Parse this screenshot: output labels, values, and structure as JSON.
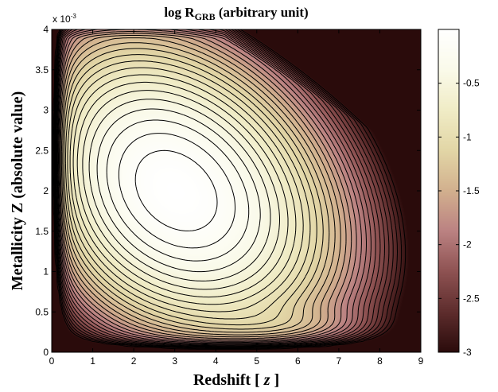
{
  "chart_data": {
    "type": "contour",
    "title_prefix": "log R",
    "title_subscript": "GRB",
    "title_suffix": " (arbitrary unit)",
    "xlabel_prefix": "Redshift [ ",
    "xlabel_var": "z",
    "xlabel_suffix": " ]",
    "ylabel": "Metallicity Z (absolute value)",
    "xlim": [
      0,
      9
    ],
    "ylim": [
      0,
      0.004
    ],
    "x_ticks": [
      "0",
      "1",
      "2",
      "3",
      "4",
      "5",
      "6",
      "7",
      "8",
      "9"
    ],
    "y_ticks": [
      "0",
      "0.5",
      "1",
      "1.5",
      "2",
      "2.5",
      "3",
      "3.5",
      "4"
    ],
    "y_multiplier_base": "x 10",
    "y_multiplier_exp": "-3",
    "colorbar": {
      "range": [
        -3,
        0
      ],
      "ticks": [
        "-0.5",
        "-1",
        "-1.5",
        "-2",
        "-2.5",
        "-3"
      ],
      "colors": [
        "#2a0b0b",
        "#5e2d2d",
        "#8e5252",
        "#bb8282",
        "#d2b08e",
        "#e2d6a6",
        "#f0ecc6",
        "#fafaea",
        "#ffffff"
      ]
    },
    "peak": {
      "x": 3.0,
      "y": 0.002,
      "log_rate": 0.0
    },
    "contour_levels": [
      -0.1,
      -0.2,
      -0.3,
      -0.4,
      -0.5,
      -0.6,
      -0.7,
      -0.8,
      -0.9,
      -1.0,
      -1.1,
      -1.2,
      -1.3,
      -1.4,
      -1.5,
      -1.6,
      -1.7,
      -1.8,
      -1.9,
      -2.0,
      -2.1,
      -2.2,
      -2.3,
      -2.4,
      -2.5,
      -2.6,
      -2.7,
      -2.8,
      -2.9
    ]
  }
}
